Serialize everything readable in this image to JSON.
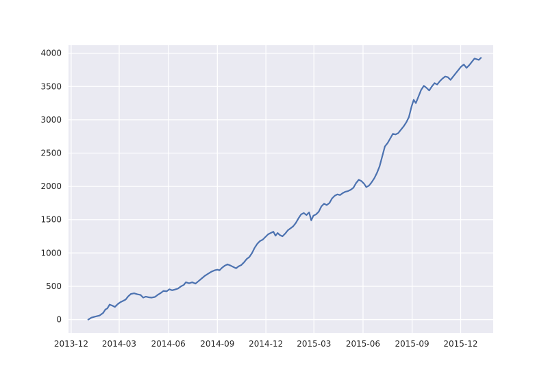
{
  "chart_data": {
    "type": "line",
    "title": "",
    "xlabel": "",
    "ylabel": "",
    "grid": true,
    "x_axis_type": "date",
    "xlim": [
      "2013-11-26",
      "2016-01-31"
    ],
    "ylim": [
      -200,
      4120
    ],
    "x_ticks": [
      "2013-12",
      "2014-03",
      "2014-06",
      "2014-09",
      "2014-12",
      "2015-03",
      "2015-06",
      "2015-09",
      "2015-12"
    ],
    "y_ticks": [
      0,
      500,
      1000,
      1500,
      2000,
      2500,
      3000,
      3500,
      4000
    ],
    "colors": {
      "plot_background": "#eaeaf2",
      "grid": "#ffffff",
      "series": "#4c72b0"
    },
    "series": [
      {
        "name": "",
        "points": [
          [
            "2014-01-02",
            0
          ],
          [
            "2014-01-08",
            30
          ],
          [
            "2014-01-15",
            45
          ],
          [
            "2014-01-23",
            60
          ],
          [
            "2014-01-30",
            100
          ],
          [
            "2014-02-03",
            150
          ],
          [
            "2014-02-07",
            170
          ],
          [
            "2014-02-11",
            225
          ],
          [
            "2014-02-16",
            210
          ],
          [
            "2014-02-21",
            190
          ],
          [
            "2014-02-26",
            230
          ],
          [
            "2014-03-03",
            260
          ],
          [
            "2014-03-08",
            280
          ],
          [
            "2014-03-13",
            300
          ],
          [
            "2014-03-18",
            350
          ],
          [
            "2014-03-23",
            385
          ],
          [
            "2014-03-29",
            395
          ],
          [
            "2014-04-04",
            380
          ],
          [
            "2014-04-10",
            370
          ],
          [
            "2014-04-15",
            330
          ],
          [
            "2014-04-20",
            345
          ],
          [
            "2014-04-25",
            335
          ],
          [
            "2014-05-01",
            330
          ],
          [
            "2014-05-07",
            340
          ],
          [
            "2014-05-12",
            370
          ],
          [
            "2014-05-18",
            400
          ],
          [
            "2014-05-23",
            430
          ],
          [
            "2014-05-29",
            425
          ],
          [
            "2014-06-03",
            455
          ],
          [
            "2014-06-08",
            440
          ],
          [
            "2014-06-13",
            450
          ],
          [
            "2014-06-19",
            465
          ],
          [
            "2014-06-25",
            500
          ],
          [
            "2014-06-30",
            520
          ],
          [
            "2014-07-04",
            560
          ],
          [
            "2014-07-10",
            545
          ],
          [
            "2014-07-16",
            560
          ],
          [
            "2014-07-22",
            540
          ],
          [
            "2014-07-28",
            580
          ],
          [
            "2014-08-03",
            620
          ],
          [
            "2014-08-09",
            660
          ],
          [
            "2014-08-15",
            690
          ],
          [
            "2014-08-21",
            720
          ],
          [
            "2014-08-27",
            740
          ],
          [
            "2014-09-01",
            750
          ],
          [
            "2014-09-05",
            740
          ],
          [
            "2014-09-10",
            780
          ],
          [
            "2014-09-15",
            810
          ],
          [
            "2014-09-20",
            830
          ],
          [
            "2014-09-26",
            810
          ],
          [
            "2014-10-01",
            790
          ],
          [
            "2014-10-06",
            770
          ],
          [
            "2014-10-11",
            800
          ],
          [
            "2014-10-16",
            820
          ],
          [
            "2014-10-21",
            860
          ],
          [
            "2014-10-26",
            910
          ],
          [
            "2014-10-31",
            940
          ],
          [
            "2014-11-05",
            1000
          ],
          [
            "2014-11-10",
            1080
          ],
          [
            "2014-11-15",
            1140
          ],
          [
            "2014-11-20",
            1180
          ],
          [
            "2014-11-25",
            1200
          ],
          [
            "2014-11-30",
            1240
          ],
          [
            "2014-12-05",
            1280
          ],
          [
            "2014-12-10",
            1300
          ],
          [
            "2014-12-15",
            1320
          ],
          [
            "2014-12-19",
            1260
          ],
          [
            "2014-12-23",
            1300
          ],
          [
            "2014-12-27",
            1270
          ],
          [
            "2015-01-01",
            1250
          ],
          [
            "2015-01-06",
            1290
          ],
          [
            "2015-01-11",
            1340
          ],
          [
            "2015-01-16",
            1370
          ],
          [
            "2015-01-21",
            1400
          ],
          [
            "2015-01-26",
            1450
          ],
          [
            "2015-01-31",
            1520
          ],
          [
            "2015-02-05",
            1580
          ],
          [
            "2015-02-10",
            1600
          ],
          [
            "2015-02-15",
            1570
          ],
          [
            "2015-02-20",
            1610
          ],
          [
            "2015-02-24",
            1490
          ],
          [
            "2015-02-28",
            1560
          ],
          [
            "2015-03-05",
            1580
          ],
          [
            "2015-03-10",
            1620
          ],
          [
            "2015-03-15",
            1700
          ],
          [
            "2015-03-20",
            1740
          ],
          [
            "2015-03-25",
            1720
          ],
          [
            "2015-03-30",
            1750
          ],
          [
            "2015-04-04",
            1820
          ],
          [
            "2015-04-09",
            1860
          ],
          [
            "2015-04-14",
            1880
          ],
          [
            "2015-04-19",
            1870
          ],
          [
            "2015-04-24",
            1900
          ],
          [
            "2015-04-29",
            1920
          ],
          [
            "2015-05-04",
            1930
          ],
          [
            "2015-05-09",
            1950
          ],
          [
            "2015-05-14",
            1980
          ],
          [
            "2015-05-19",
            2050
          ],
          [
            "2015-05-24",
            2100
          ],
          [
            "2015-05-29",
            2080
          ],
          [
            "2015-06-03",
            2040
          ],
          [
            "2015-06-07",
            1990
          ],
          [
            "2015-06-12",
            2010
          ],
          [
            "2015-06-17",
            2060
          ],
          [
            "2015-06-22",
            2120
          ],
          [
            "2015-06-27",
            2200
          ],
          [
            "2015-07-02",
            2300
          ],
          [
            "2015-07-07",
            2450
          ],
          [
            "2015-07-12",
            2600
          ],
          [
            "2015-07-17",
            2650
          ],
          [
            "2015-07-22",
            2720
          ],
          [
            "2015-07-27",
            2790
          ],
          [
            "2015-08-01",
            2780
          ],
          [
            "2015-08-06",
            2800
          ],
          [
            "2015-08-11",
            2850
          ],
          [
            "2015-08-16",
            2900
          ],
          [
            "2015-08-21",
            2960
          ],
          [
            "2015-08-26",
            3040
          ],
          [
            "2015-08-31",
            3200
          ],
          [
            "2015-09-04",
            3300
          ],
          [
            "2015-09-08",
            3250
          ],
          [
            "2015-09-13",
            3350
          ],
          [
            "2015-09-18",
            3450
          ],
          [
            "2015-09-23",
            3510
          ],
          [
            "2015-09-28",
            3480
          ],
          [
            "2015-10-03",
            3440
          ],
          [
            "2015-10-08",
            3500
          ],
          [
            "2015-10-13",
            3550
          ],
          [
            "2015-10-18",
            3530
          ],
          [
            "2015-10-23",
            3580
          ],
          [
            "2015-10-28",
            3620
          ],
          [
            "2015-11-02",
            3650
          ],
          [
            "2015-11-07",
            3640
          ],
          [
            "2015-11-12",
            3600
          ],
          [
            "2015-11-17",
            3650
          ],
          [
            "2015-11-22",
            3700
          ],
          [
            "2015-11-27",
            3750
          ],
          [
            "2015-12-02",
            3800
          ],
          [
            "2015-12-07",
            3830
          ],
          [
            "2015-12-12",
            3780
          ],
          [
            "2015-12-17",
            3820
          ],
          [
            "2015-12-22",
            3870
          ],
          [
            "2015-12-27",
            3920
          ],
          [
            "2015-12-31",
            3910
          ],
          [
            "2016-01-04",
            3900
          ],
          [
            "2016-01-08",
            3930
          ]
        ]
      }
    ]
  }
}
